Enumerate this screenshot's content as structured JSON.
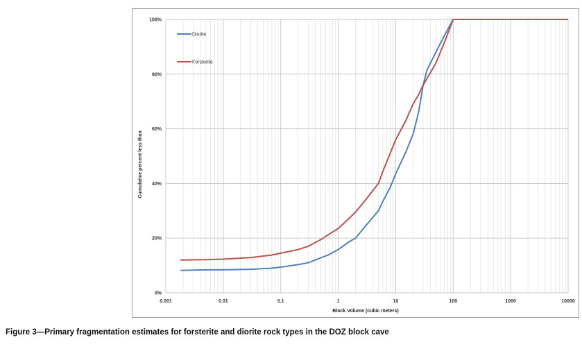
{
  "caption": "Figure 3—Primary fragmentation estimates for forsterite and diorite rock types in the DOZ block cave",
  "chart_data": {
    "type": "line",
    "title": "",
    "xlabel": "Block Volume (cubic meters)",
    "ylabel": "Cumulative percent less than",
    "xscale": "log",
    "xlim": [
      0.001,
      10000
    ],
    "ylim": [
      0,
      100
    ],
    "x_ticks": [
      "0.001",
      "0.01",
      "0.1",
      "1",
      "10",
      "100",
      "1000",
      "10000"
    ],
    "y_ticks": [
      "0%",
      "20%",
      "40%",
      "60%",
      "80%",
      "100%"
    ],
    "grid": "major and minor vertical, major horizontal",
    "legend_position": "top-left",
    "series": [
      {
        "name": "Diorite",
        "color": "#4f81bd",
        "points": [
          [
            0.0018,
            8.2
          ],
          [
            0.005,
            8.4
          ],
          [
            0.01,
            8.4
          ],
          [
            0.03,
            8.6
          ],
          [
            0.07,
            9.0
          ],
          [
            0.1,
            9.4
          ],
          [
            0.2,
            10.3
          ],
          [
            0.3,
            11.0
          ],
          [
            0.5,
            12.8
          ],
          [
            0.7,
            14.0
          ],
          [
            1,
            15.8
          ],
          [
            1.5,
            18.5
          ],
          [
            2,
            20.0
          ],
          [
            3,
            24.5
          ],
          [
            5,
            30.0
          ],
          [
            6,
            33.5
          ],
          [
            8,
            38.5
          ],
          [
            10,
            43.5
          ],
          [
            15,
            51.5
          ],
          [
            20,
            58.0
          ],
          [
            25,
            66.0
          ],
          [
            30,
            76.0
          ],
          [
            35,
            81.5
          ],
          [
            50,
            88.0
          ],
          [
            70,
            94.0
          ],
          [
            100,
            100.0
          ],
          [
            300,
            100.0
          ],
          [
            1000,
            100.0
          ],
          [
            10000,
            100.0
          ]
        ]
      },
      {
        "name": "Forsterite",
        "color": "#c0504d",
        "points": [
          [
            0.0018,
            12.0
          ],
          [
            0.005,
            12.1
          ],
          [
            0.01,
            12.3
          ],
          [
            0.03,
            12.9
          ],
          [
            0.07,
            13.8
          ],
          [
            0.1,
            14.5
          ],
          [
            0.2,
            15.8
          ],
          [
            0.3,
            17.0
          ],
          [
            0.5,
            19.5
          ],
          [
            0.7,
            21.5
          ],
          [
            1,
            23.5
          ],
          [
            1.5,
            27.0
          ],
          [
            2,
            29.5
          ],
          [
            3,
            34.0
          ],
          [
            5,
            40.0
          ],
          [
            6,
            44.5
          ],
          [
            8,
            51.0
          ],
          [
            10,
            56.0
          ],
          [
            15,
            63.0
          ],
          [
            20,
            69.0
          ],
          [
            25,
            72.5
          ],
          [
            30,
            76.0
          ],
          [
            50,
            84.0
          ],
          [
            70,
            91.5
          ],
          [
            100,
            100.0
          ],
          [
            300,
            100.0
          ],
          [
            1000,
            100.0
          ],
          [
            10000,
            100.0
          ]
        ]
      }
    ]
  }
}
